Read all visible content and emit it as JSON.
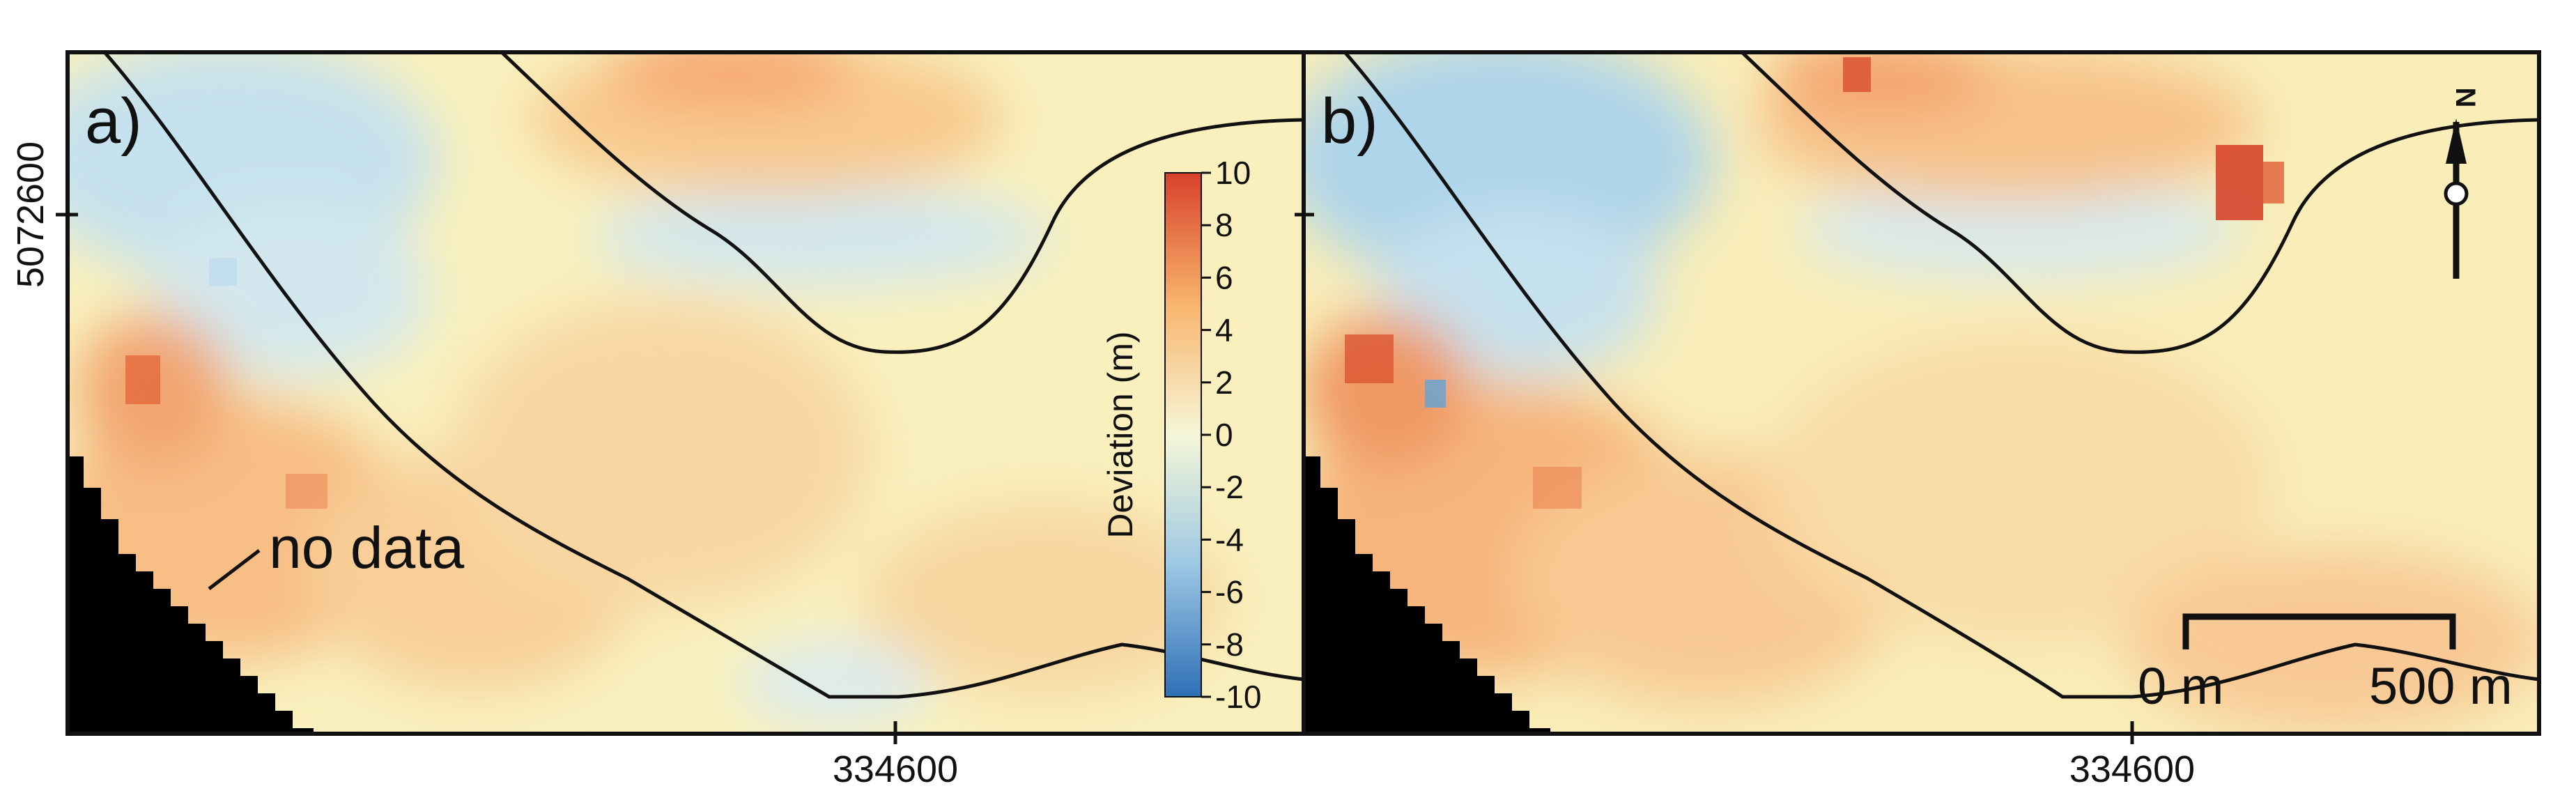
{
  "figure": {
    "y_tick_label": "5072600",
    "panels": [
      {
        "id": "a",
        "label": "a)",
        "x_tick_label": "334600",
        "note": "no data"
      },
      {
        "id": "b",
        "label": "b)",
        "x_tick_label": "334600"
      }
    ]
  },
  "colorbar": {
    "title": "Deviation (m)",
    "min": -10,
    "max": 10,
    "ticks": [
      "10",
      "8",
      "6",
      "4",
      "2",
      "0",
      "-2",
      "-4",
      "-6",
      "-8",
      "-10"
    ],
    "colors": [
      "#2f6fb6",
      "#9cc7e4",
      "#f6f7d8",
      "#f8b46c",
      "#d7412a"
    ]
  },
  "scale_bar": {
    "start_label": "0 m",
    "end_label": "500 m"
  },
  "north_arrow": {
    "label": "N",
    "icon": "north-arrow-icon"
  },
  "colors": {
    "no_data": "#000000",
    "contour": "#111111",
    "frame": "#111111"
  }
}
